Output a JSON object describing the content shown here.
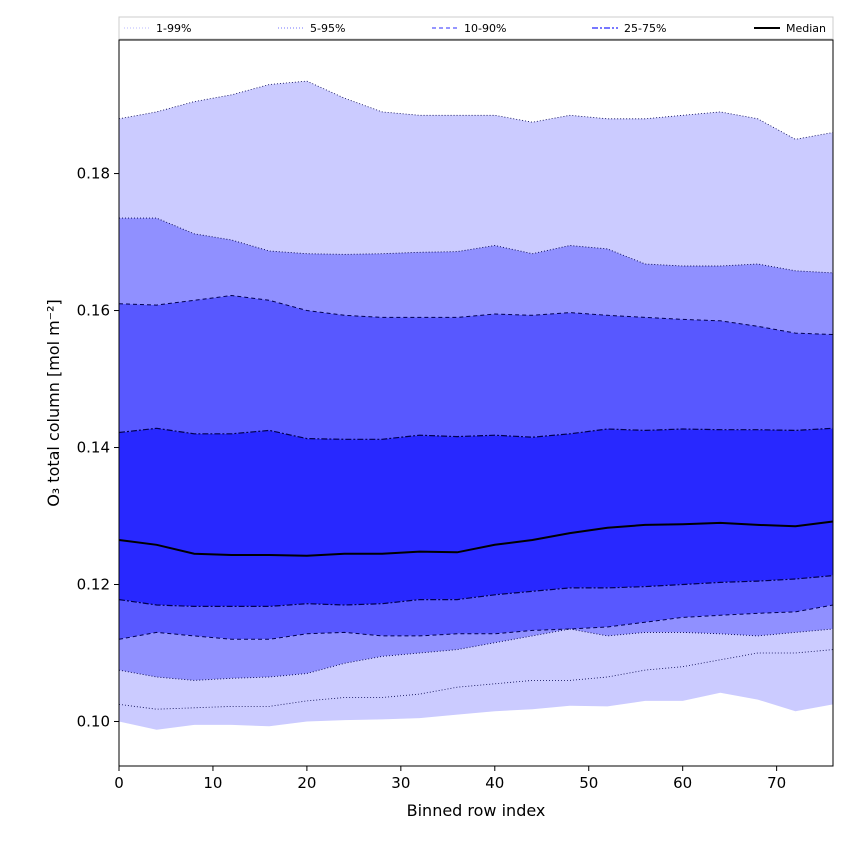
{
  "chart_data": {
    "type": "area",
    "xlabel": "Binned row index",
    "ylabel": "O₃ total column [mol m⁻²]",
    "xlim": [
      0,
      76
    ],
    "ylim": [
      0.0935,
      0.1995
    ],
    "x_ticks": [
      0,
      10,
      20,
      30,
      40,
      50,
      60,
      70
    ],
    "x_tick_labels": [
      "0",
      "10",
      "20",
      "30",
      "40",
      "50",
      "60",
      "70"
    ],
    "y_ticks": [
      0.1,
      0.12,
      0.14,
      0.16,
      0.18
    ],
    "y_tick_labels": [
      "0.10",
      "0.12",
      "0.14",
      "0.16",
      "0.18"
    ],
    "grid": false,
    "legend_position": "top",
    "legend": [
      {
        "label": "1-99%",
        "color": "#c8c8ff",
        "style": "dotted"
      },
      {
        "label": "5-95%",
        "color": "#9090ff",
        "style": "dotted"
      },
      {
        "label": "10-90%",
        "color": "#5858ff",
        "style": "dashed"
      },
      {
        "label": "25-75%",
        "color": "#2828ff",
        "style": "dashdot"
      },
      {
        "label": "Median",
        "color": "#000000",
        "style": "solid"
      }
    ],
    "x": [
      0,
      4,
      8,
      12,
      16,
      20,
      24,
      28,
      32,
      36,
      40,
      44,
      48,
      52,
      56,
      60,
      64,
      68,
      72,
      76
    ],
    "series": [
      {
        "name": "1-99% upper",
        "values": [
          0.188,
          0.189,
          0.1905,
          0.1915,
          0.193,
          0.1935,
          0.191,
          0.189,
          0.1885,
          0.1885,
          0.1885,
          0.1875,
          0.1885,
          0.188,
          0.188,
          0.1885,
          0.189,
          0.188,
          0.185,
          0.186
        ]
      },
      {
        "name": "5-95% upper",
        "values": [
          0.1735,
          0.1735,
          0.1712,
          0.1703,
          0.1687,
          0.1683,
          0.1682,
          0.1683,
          0.1685,
          0.1686,
          0.1695,
          0.1683,
          0.1695,
          0.169,
          0.1668,
          0.1665,
          0.1665,
          0.1668,
          0.1658,
          0.1655
        ]
      },
      {
        "name": "10-90% upper",
        "values": [
          0.161,
          0.1608,
          0.1615,
          0.1622,
          0.1615,
          0.16,
          0.1593,
          0.159,
          0.159,
          0.159,
          0.1595,
          0.1593,
          0.1597,
          0.1593,
          0.159,
          0.1587,
          0.1585,
          0.1577,
          0.1567,
          0.1565
        ]
      },
      {
        "name": "25-75% upper",
        "values": [
          0.1422,
          0.1428,
          0.142,
          0.142,
          0.1425,
          0.1413,
          0.1412,
          0.1412,
          0.1418,
          0.1416,
          0.1418,
          0.1415,
          0.142,
          0.1427,
          0.1425,
          0.1427,
          0.1426,
          0.1426,
          0.1425,
          0.1428
        ]
      },
      {
        "name": "Median",
        "values": [
          0.1265,
          0.1258,
          0.1245,
          0.1243,
          0.1243,
          0.1242,
          0.1245,
          0.1245,
          0.1248,
          0.1247,
          0.1258,
          0.1265,
          0.1275,
          0.1283,
          0.1287,
          0.1288,
          0.129,
          0.1287,
          0.1285,
          0.1292
        ]
      },
      {
        "name": "25-75% lower",
        "values": [
          0.1178,
          0.117,
          0.1168,
          0.1168,
          0.1168,
          0.1172,
          0.117,
          0.1172,
          0.1178,
          0.1178,
          0.1185,
          0.119,
          0.1195,
          0.1195,
          0.1197,
          0.12,
          0.1203,
          0.1205,
          0.1208,
          0.1213
        ]
      },
      {
        "name": "10-90% lower",
        "values": [
          0.112,
          0.113,
          0.1125,
          0.112,
          0.112,
          0.1128,
          0.113,
          0.1125,
          0.1125,
          0.1128,
          0.1128,
          0.1133,
          0.1135,
          0.1138,
          0.1145,
          0.1152,
          0.1155,
          0.1158,
          0.116,
          0.117
        ]
      },
      {
        "name": "5-95% lower",
        "values": [
          0.1075,
          0.1065,
          0.106,
          0.1063,
          0.1065,
          0.107,
          0.1085,
          0.1095,
          0.11,
          0.1105,
          0.1115,
          0.1125,
          0.1135,
          0.1125,
          0.113,
          0.113,
          0.1128,
          0.1125,
          0.113,
          0.1135
        ]
      },
      {
        "name": "1-99% lower",
        "values": [
          0.1025,
          0.1018,
          0.102,
          0.1022,
          0.1022,
          0.103,
          0.1035,
          0.1035,
          0.104,
          0.105,
          0.1055,
          0.106,
          0.106,
          0.1065,
          0.1075,
          0.108,
          0.109,
          0.11,
          0.11,
          0.1105
        ]
      },
      {
        "name": "Lowest envelope",
        "values": [
          0.1,
          0.0988,
          0.0995,
          0.0995,
          0.0993,
          0.1,
          0.1002,
          0.1003,
          0.1005,
          0.101,
          0.1015,
          0.1018,
          0.1023,
          0.1022,
          0.103,
          0.103,
          0.1042,
          0.1032,
          0.1015,
          0.1025
        ]
      }
    ],
    "band_fills": [
      "#cbcbff",
      "#9090ff",
      "#5858ff",
      "#2828ff",
      "#2828ff",
      "#5858ff",
      "#9090ff",
      "#cbcbff",
      "#cbcbff"
    ]
  }
}
